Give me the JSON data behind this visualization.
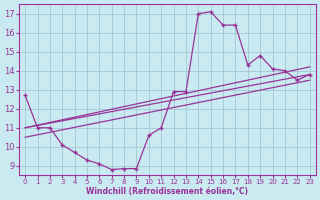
{
  "xlabel": "Windchill (Refroidissement éolien,°C)",
  "xlim": [
    -0.5,
    23.5
  ],
  "ylim": [
    8.5,
    17.5
  ],
  "xticks": [
    0,
    1,
    2,
    3,
    4,
    5,
    6,
    7,
    8,
    9,
    10,
    11,
    12,
    13,
    14,
    15,
    16,
    17,
    18,
    19,
    20,
    21,
    22,
    23
  ],
  "yticks": [
    9,
    10,
    11,
    12,
    13,
    14,
    15,
    16,
    17
  ],
  "bg_color": "#c8eaf0",
  "grid_color": "#aaccd8",
  "line_color": "#993399",
  "jagged_x": [
    0,
    1,
    2,
    3,
    4,
    5,
    6,
    7,
    8,
    9,
    10,
    11,
    12,
    13,
    14,
    15,
    16,
    17,
    18,
    19,
    20,
    21,
    22,
    23
  ],
  "jagged_y": [
    12.7,
    11.0,
    11.0,
    10.1,
    9.7,
    9.3,
    9.1,
    8.8,
    8.85,
    8.85,
    10.6,
    11.0,
    12.9,
    12.9,
    17.0,
    17.1,
    16.4,
    16.4,
    14.3,
    14.8,
    14.1,
    14.0,
    13.5,
    13.8
  ],
  "upper_line_x": [
    0,
    23
  ],
  "upper_line_y": [
    11.0,
    14.2
  ],
  "lower_line_x": [
    0,
    23
  ],
  "lower_line_y": [
    10.5,
    13.5
  ],
  "mid_line_x": [
    0,
    23
  ],
  "mid_line_y": [
    11.0,
    13.8
  ]
}
